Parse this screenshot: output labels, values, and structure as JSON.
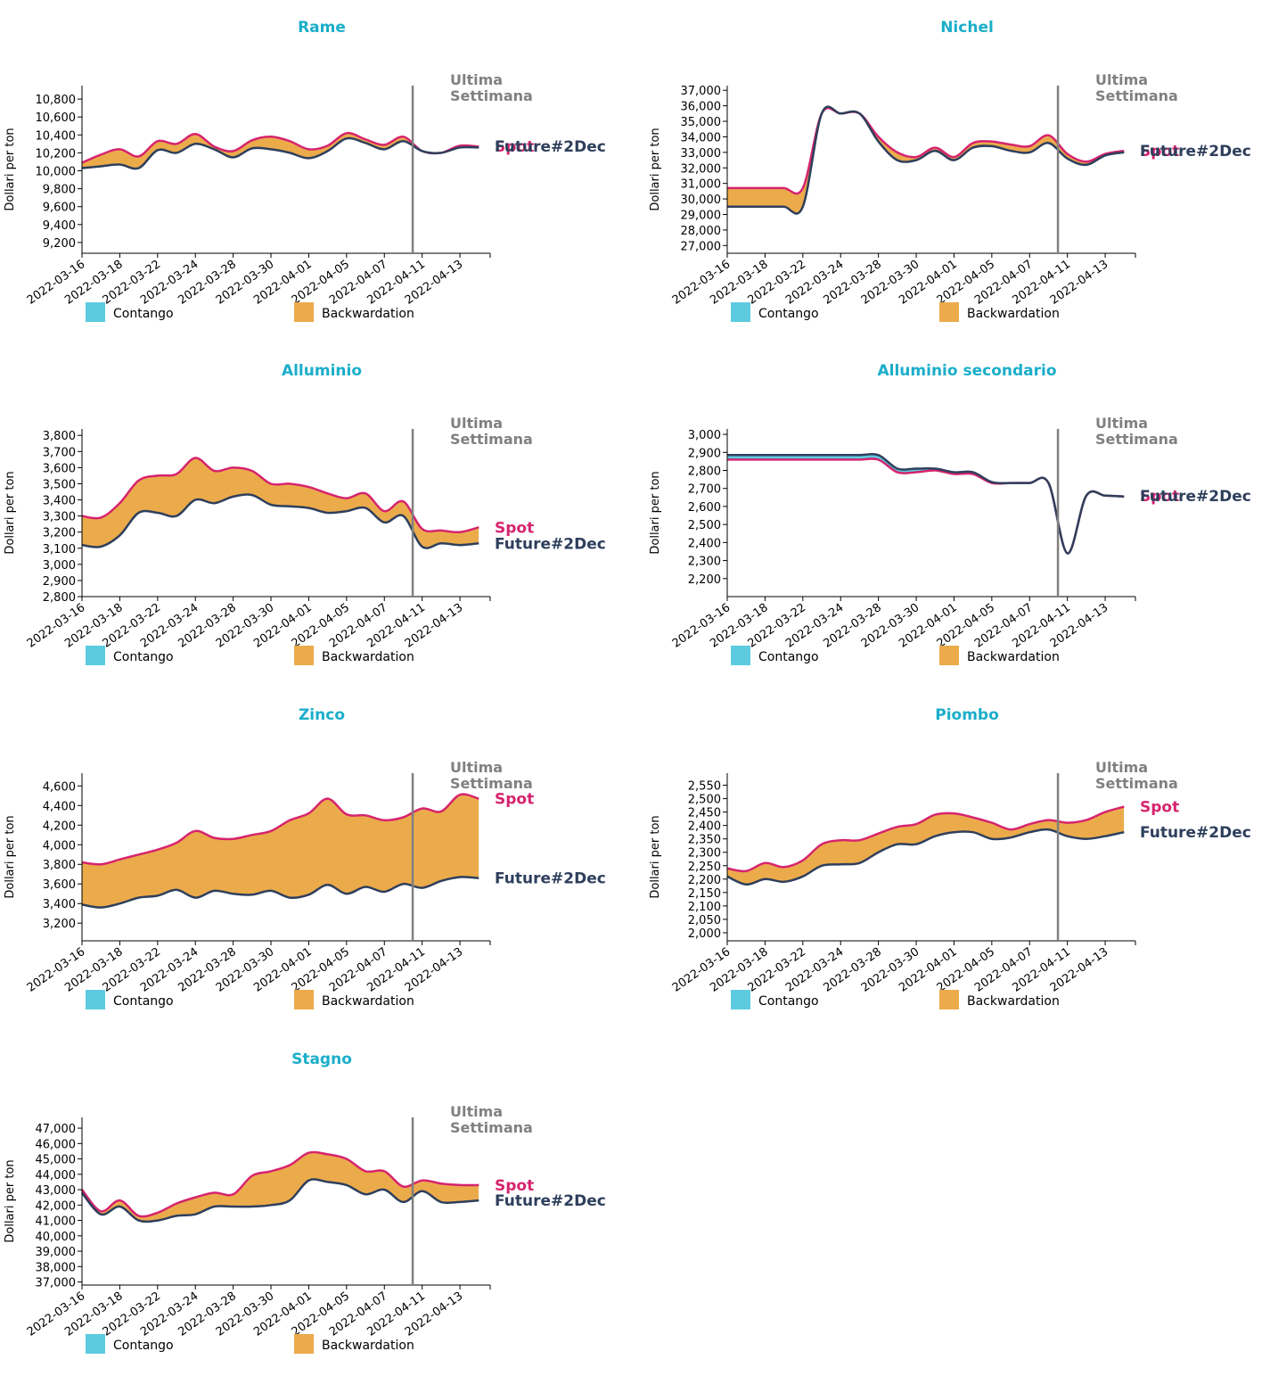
{
  "colors": {
    "title": "#1aaec9",
    "spot": "#d6246e",
    "future": "#2e3f5c",
    "contango": "#5ccbdf",
    "backwardation": "#ecab4b",
    "week_line": "#808080",
    "week_text": "#808080"
  },
  "labels": {
    "week_line1": "Ultima",
    "week_line2": "Settimana",
    "spot": "Spot",
    "future": "Future#2Dec",
    "ylabel": "Dollari per ton",
    "legend_contango": "Contango",
    "legend_backwardation": "Backwardation"
  },
  "chart_data": [
    {
      "type": "area",
      "title": "Rame",
      "ylabel": "Dollari per ton",
      "categories": [
        "2022-03-16",
        "2022-03-18",
        "2022-03-22",
        "2022-03-24",
        "2022-03-28",
        "2022-03-30",
        "2022-04-01",
        "2022-04-05",
        "2022-04-07",
        "2022-04-11",
        "2022-04-13"
      ],
      "x": [
        0,
        1,
        2,
        3,
        4,
        5,
        6,
        7,
        8,
        9,
        10,
        11,
        12,
        13,
        14,
        15,
        16,
        17,
        18,
        19,
        20,
        21
      ],
      "yticks": [
        9200,
        9400,
        9600,
        9800,
        10000,
        10200,
        10400,
        10600,
        10800
      ],
      "ylim": [
        9080,
        10950
      ],
      "week_line_x": 17.5,
      "series": [
        {
          "name": "Spot",
          "values": [
            10090,
            10180,
            10240,
            10160,
            10330,
            10300,
            10410,
            10270,
            10220,
            10340,
            10380,
            10330,
            10240,
            10280,
            10420,
            10350,
            10290,
            10380,
            10220,
            10200,
            10280,
            10270
          ]
        },
        {
          "name": "Future#2Dec",
          "values": [
            10030,
            10050,
            10070,
            10030,
            10230,
            10200,
            10300,
            10240,
            10150,
            10250,
            10240,
            10200,
            10140,
            10220,
            10360,
            10310,
            10240,
            10330,
            10220,
            10200,
            10260,
            10260
          ]
        }
      ]
    },
    {
      "type": "area",
      "title": "Nichel",
      "ylabel": "Dollari per ton",
      "categories": [
        "2022-03-16",
        "2022-03-18",
        "2022-03-22",
        "2022-03-24",
        "2022-03-28",
        "2022-03-30",
        "2022-04-01",
        "2022-04-05",
        "2022-04-07",
        "2022-04-11",
        "2022-04-13"
      ],
      "x": [
        0,
        1,
        2,
        3,
        4,
        5,
        6,
        7,
        8,
        9,
        10,
        11,
        12,
        13,
        14,
        15,
        16,
        17,
        18,
        19,
        20,
        21
      ],
      "yticks": [
        27000,
        28000,
        29000,
        30000,
        31000,
        32000,
        33000,
        34000,
        35000,
        36000,
        37000
      ],
      "ylim": [
        26500,
        37300
      ],
      "week_line_x": 17.5,
      "series": [
        {
          "name": "Spot",
          "values": [
            30700,
            30700,
            30700,
            30700,
            30700,
            35500,
            35500,
            35500,
            34000,
            33000,
            32700,
            33300,
            32700,
            33600,
            33700,
            33500,
            33400,
            34100,
            32900,
            32400,
            32900,
            33100
          ]
        },
        {
          "name": "Future#2Dec",
          "values": [
            29500,
            29500,
            29500,
            29500,
            29500,
            35500,
            35500,
            35500,
            33700,
            32500,
            32500,
            33100,
            32500,
            33300,
            33400,
            33100,
            33000,
            33600,
            32600,
            32200,
            32800,
            33000
          ]
        }
      ]
    },
    {
      "type": "area",
      "title": "Alluminio",
      "ylabel": "Dollari per ton",
      "categories": [
        "2022-03-16",
        "2022-03-18",
        "2022-03-22",
        "2022-03-24",
        "2022-03-28",
        "2022-03-30",
        "2022-04-01",
        "2022-04-05",
        "2022-04-07",
        "2022-04-11",
        "2022-04-13"
      ],
      "x": [
        0,
        1,
        2,
        3,
        4,
        5,
        6,
        7,
        8,
        9,
        10,
        11,
        12,
        13,
        14,
        15,
        16,
        17,
        18,
        19,
        20,
        21
      ],
      "yticks": [
        2800,
        2900,
        3000,
        3100,
        3200,
        3300,
        3400,
        3500,
        3600,
        3700,
        3800
      ],
      "ylim": [
        2800,
        3840
      ],
      "week_line_x": 17.5,
      "series": [
        {
          "name": "Spot",
          "values": [
            3300,
            3290,
            3380,
            3520,
            3550,
            3560,
            3660,
            3580,
            3600,
            3580,
            3500,
            3500,
            3480,
            3440,
            3410,
            3440,
            3330,
            3390,
            3220,
            3210,
            3200,
            3230
          ]
        },
        {
          "name": "Future#2Dec",
          "values": [
            3120,
            3110,
            3180,
            3320,
            3320,
            3300,
            3400,
            3380,
            3420,
            3430,
            3370,
            3360,
            3350,
            3320,
            3330,
            3350,
            3260,
            3300,
            3110,
            3130,
            3120,
            3130
          ]
        }
      ]
    },
    {
      "type": "area",
      "title": "Alluminio secondario",
      "ylabel": "Dollari per ton",
      "categories": [
        "2022-03-16",
        "2022-03-18",
        "2022-03-22",
        "2022-03-24",
        "2022-03-28",
        "2022-03-30",
        "2022-04-01",
        "2022-04-05",
        "2022-04-07",
        "2022-04-11",
        "2022-04-13"
      ],
      "x": [
        0,
        1,
        2,
        3,
        4,
        5,
        6,
        7,
        8,
        9,
        10,
        11,
        12,
        13,
        14,
        15,
        16,
        17,
        18,
        19,
        20,
        21
      ],
      "yticks": [
        2200,
        2300,
        2400,
        2500,
        2600,
        2700,
        2800,
        2900,
        3000
      ],
      "ylim": [
        2100,
        3030
      ],
      "week_line_x": 17.5,
      "series": [
        {
          "name": "Spot",
          "values": [
            2860,
            2860,
            2860,
            2860,
            2860,
            2860,
            2860,
            2860,
            2860,
            2790,
            2790,
            2800,
            2780,
            2780,
            2730,
            2730,
            2730,
            2730,
            2340,
            2660,
            2660,
            2655
          ]
        },
        {
          "name": "Future#2Dec",
          "values": [
            2885,
            2885,
            2885,
            2885,
            2885,
            2885,
            2885,
            2885,
            2885,
            2810,
            2810,
            2810,
            2790,
            2790,
            2735,
            2730,
            2730,
            2730,
            2340,
            2660,
            2660,
            2655
          ]
        }
      ]
    },
    {
      "type": "area",
      "title": "Zinco",
      "ylabel": "Dollari per ton",
      "categories": [
        "2022-03-16",
        "2022-03-18",
        "2022-03-22",
        "2022-03-24",
        "2022-03-28",
        "2022-03-30",
        "2022-04-01",
        "2022-04-05",
        "2022-04-07",
        "2022-04-11",
        "2022-04-13"
      ],
      "x": [
        0,
        1,
        2,
        3,
        4,
        5,
        6,
        7,
        8,
        9,
        10,
        11,
        12,
        13,
        14,
        15,
        16,
        17,
        18,
        19,
        20,
        21
      ],
      "yticks": [
        3200,
        3400,
        3600,
        3800,
        4000,
        4200,
        4400,
        4600
      ],
      "ylim": [
        3020,
        4730
      ],
      "week_line_x": 17.5,
      "series": [
        {
          "name": "Spot",
          "values": [
            3820,
            3800,
            3850,
            3900,
            3950,
            4020,
            4140,
            4070,
            4060,
            4100,
            4140,
            4250,
            4320,
            4470,
            4310,
            4300,
            4250,
            4280,
            4370,
            4340,
            4510,
            4470
          ]
        },
        {
          "name": "Future#2Dec",
          "values": [
            3390,
            3360,
            3400,
            3460,
            3480,
            3540,
            3460,
            3530,
            3500,
            3490,
            3530,
            3460,
            3490,
            3590,
            3500,
            3570,
            3520,
            3600,
            3560,
            3630,
            3670,
            3660
          ]
        }
      ]
    },
    {
      "type": "area",
      "title": "Piombo",
      "ylabel": "Dollari per ton",
      "categories": [
        "2022-03-16",
        "2022-03-18",
        "2022-03-22",
        "2022-03-24",
        "2022-03-28",
        "2022-03-30",
        "2022-04-01",
        "2022-04-05",
        "2022-04-07",
        "2022-04-11",
        "2022-04-13"
      ],
      "x": [
        0,
        1,
        2,
        3,
        4,
        5,
        6,
        7,
        8,
        9,
        10,
        11,
        12,
        13,
        14,
        15,
        16,
        17,
        18,
        19,
        20,
        21
      ],
      "yticks": [
        2000,
        2050,
        2100,
        2150,
        2200,
        2250,
        2300,
        2350,
        2400,
        2450,
        2500,
        2550
      ],
      "ylim": [
        1970,
        2595
      ],
      "week_line_x": 17.5,
      "series": [
        {
          "name": "Spot",
          "values": [
            2240,
            2230,
            2260,
            2245,
            2270,
            2330,
            2345,
            2345,
            2370,
            2395,
            2405,
            2440,
            2445,
            2430,
            2410,
            2385,
            2405,
            2420,
            2410,
            2420,
            2450,
            2470
          ]
        },
        {
          "name": "Future#2Dec",
          "values": [
            2210,
            2180,
            2200,
            2190,
            2210,
            2250,
            2255,
            2260,
            2300,
            2330,
            2330,
            2360,
            2375,
            2375,
            2350,
            2355,
            2375,
            2385,
            2360,
            2350,
            2360,
            2375
          ]
        }
      ]
    },
    {
      "type": "area",
      "title": "Stagno",
      "ylabel": "Dollari per ton",
      "categories": [
        "2022-03-16",
        "2022-03-18",
        "2022-03-22",
        "2022-03-24",
        "2022-03-28",
        "2022-03-30",
        "2022-04-01",
        "2022-04-05",
        "2022-04-07",
        "2022-04-11",
        "2022-04-13"
      ],
      "x": [
        0,
        1,
        2,
        3,
        4,
        5,
        6,
        7,
        8,
        9,
        10,
        11,
        12,
        13,
        14,
        15,
        16,
        17,
        18,
        19,
        20,
        21
      ],
      "yticks": [
        37000,
        38000,
        39000,
        40000,
        41000,
        42000,
        43000,
        44000,
        45000,
        46000,
        47000
      ],
      "ylim": [
        36800,
        47700
      ],
      "week_line_x": 17.5,
      "series": [
        {
          "name": "Spot",
          "values": [
            43000,
            41600,
            42300,
            41300,
            41500,
            42100,
            42500,
            42800,
            42700,
            43900,
            44200,
            44600,
            45400,
            45300,
            45000,
            44200,
            44200,
            43200,
            43600,
            43400,
            43300,
            43300
          ]
        },
        {
          "name": "Future#2Dec",
          "values": [
            42800,
            41400,
            41900,
            41000,
            41000,
            41300,
            41400,
            41900,
            41900,
            41900,
            42000,
            42300,
            43600,
            43500,
            43300,
            42700,
            43000,
            42200,
            42900,
            42200,
            42200,
            42300
          ]
        }
      ]
    }
  ]
}
